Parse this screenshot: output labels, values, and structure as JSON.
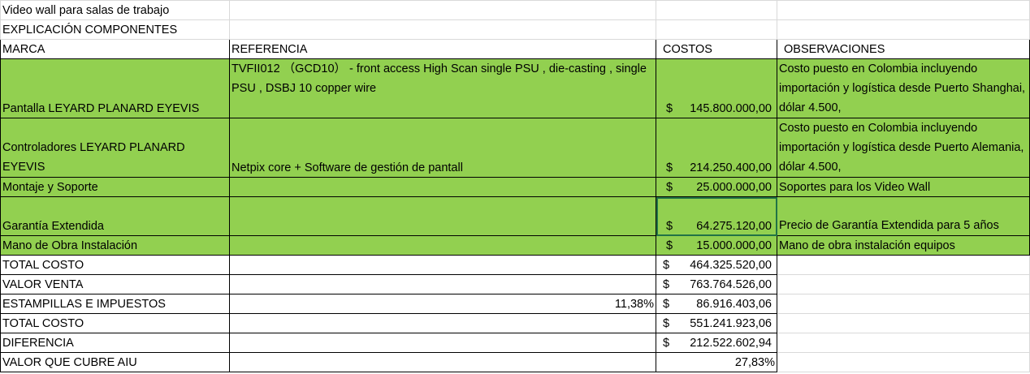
{
  "title_row": "Video wall para salas de trabajo",
  "subtitle_row": "EXPLICACIÓN COMPONENTES",
  "headers": {
    "marca": "MARCA",
    "referencia": "REFERENCIA",
    "costos": "COSTOS",
    "observaciones": "OBSERVACIONES"
  },
  "items": [
    {
      "marca": "Pantalla LEYARD PLANARD EYEVIS",
      "referencia": "TVFII012 （GCD10） - front access High Scan single PSU ,    die-casting ,    single PSU , DSBJ 10 copper wire",
      "currency": "$",
      "costo": "145.800.000,00",
      "observacion": "Costo puesto en Colombia incluyendo importación y logística desde Puerto Shanghai, dólar 4.500,"
    },
    {
      "marca": "Controladores LEYARD PLANARD EYEVIS",
      "referencia": " Netpix core + Software de gestión de pantall",
      "currency": "$",
      "costo": "214.250.400,00",
      "observacion": "Costo puesto en Colombia incluyendo importación y logística desde Puerto Alemania, dólar 4.500,"
    },
    {
      "marca": "Montaje y Soporte",
      "referencia": "",
      "currency": "$",
      "costo": "25.000.000,00",
      "observacion": "Soportes para los Video Wall"
    },
    {
      "marca": "Garantía Extendida",
      "referencia": "",
      "currency": "$",
      "costo": "64.275.120,00",
      "observacion": "Precio de Garantía Extendida  para 5 años"
    },
    {
      "marca": "Mano de Obra Instalación",
      "referencia": "",
      "currency": "$",
      "costo": "15.000.000,00",
      "observacion": "Mano de obra instalación equipos"
    }
  ],
  "summary": [
    {
      "label": "TOTAL COSTO",
      "extra": "",
      "currency": "$",
      "value": "464.325.520,00"
    },
    {
      "label": "VALOR VENTA",
      "extra": "",
      "currency": "$",
      "value": "763.764.526,00"
    },
    {
      "label": "ESTAMPILLAS E IMPUESTOS",
      "extra": "11,38%",
      "currency": "$",
      "value": "86.916.403,06"
    },
    {
      "label": "TOTAL COSTO",
      "extra": "",
      "currency": "$",
      "value": "551.241.923,06"
    },
    {
      "label": "DIFERENCIA",
      "extra": "",
      "currency": "$",
      "value": "212.522.602,94"
    },
    {
      "label": "VALOR QUE CUBRE AIU",
      "extra": "",
      "currency": "",
      "value": "27,83%"
    }
  ],
  "colors": {
    "highlight_green": "#92d050",
    "gridline": "#d9d9d9",
    "selection": "#217346"
  }
}
